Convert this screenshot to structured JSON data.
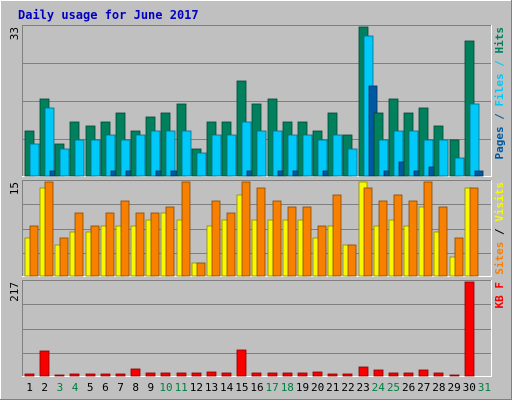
{
  "chart_data": {
    "type": "bar",
    "title": "Daily usage for June 2017",
    "categories": [
      "1",
      "2",
      "3",
      "4",
      "5",
      "6",
      "7",
      "8",
      "9",
      "10",
      "11",
      "12",
      "13",
      "14",
      "15",
      "16",
      "17",
      "18",
      "19",
      "20",
      "21",
      "22",
      "23",
      "24",
      "25",
      "26",
      "27",
      "28",
      "29",
      "30",
      "31"
    ],
    "weekend_days": [
      "3",
      "4",
      "10",
      "11",
      "17",
      "18",
      "24",
      "25",
      "31"
    ],
    "panels": [
      {
        "id": "hits",
        "ymax_label": "33",
        "ymax": 33,
        "side_label": [
          "Pages",
          "Files",
          "Hits"
        ],
        "series": [
          {
            "name": "Hits",
            "color": "#00805c",
            "values": [
              10,
              17,
              7,
              12,
              11,
              12,
              14,
              10,
              13,
              14,
              16,
              6,
              12,
              12,
              21,
              16,
              17,
              12,
              12,
              10,
              14,
              9,
              33,
              14,
              17,
              14,
              15,
              11,
              8,
              30,
              null
            ]
          },
          {
            "name": "Files",
            "color": "#00c8f8",
            "values": [
              7,
              15,
              6,
              8,
              8,
              9,
              8,
              9,
              10,
              10,
              10,
              5,
              9,
              9,
              12,
              10,
              10,
              9,
              9,
              8,
              9,
              6,
              31,
              8,
              10,
              10,
              8,
              8,
              4,
              16,
              null
            ]
          },
          {
            "name": "Pages",
            "color": "#0058a0",
            "values": [
              0,
              1,
              0,
              0,
              0,
              1,
              1,
              0,
              1,
              1,
              0,
              0,
              0,
              0,
              1,
              0,
              1,
              1,
              0,
              1,
              0,
              0,
              20,
              1,
              3,
              1,
              2,
              0,
              0,
              1,
              null
            ]
          }
        ]
      },
      {
        "id": "visits",
        "ymax_label": "15",
        "ymax": 15,
        "side_label": [
          "Sites",
          "/",
          "Visits"
        ],
        "series": [
          {
            "name": "Visits",
            "color": "#f8f800",
            "values": [
              6,
              14,
              5,
              7,
              7,
              8,
              8,
              8,
              9,
              10,
              9,
              2,
              8,
              9,
              13,
              9,
              9,
              9,
              9,
              6,
              8,
              5,
              15,
              8,
              9,
              8,
              11,
              7,
              3,
              14,
              null
            ]
          },
          {
            "name": "Sites",
            "color": "#f88000",
            "values": [
              8,
              15,
              6,
              10,
              8,
              10,
              12,
              10,
              10,
              11,
              15,
              2,
              12,
              10,
              15,
              14,
              12,
              11,
              11,
              8,
              13,
              5,
              14,
              12,
              13,
              12,
              15,
              11,
              6,
              14,
              null
            ]
          }
        ]
      },
      {
        "id": "kbf",
        "ymax_label": "217",
        "ymax": 217,
        "side_label": [
          "KB F"
        ],
        "series": [
          {
            "name": "KB F",
            "color": "#f80000",
            "values": [
              5,
              57,
              2,
              4,
              4,
              5,
              5,
              16,
              6,
              6,
              6,
              6,
              9,
              6,
              61,
              6,
              7,
              6,
              6,
              9,
              5,
              5,
              20,
              14,
              8,
              8,
              14,
              7,
              2,
              217,
              null
            ]
          }
        ]
      }
    ]
  }
}
